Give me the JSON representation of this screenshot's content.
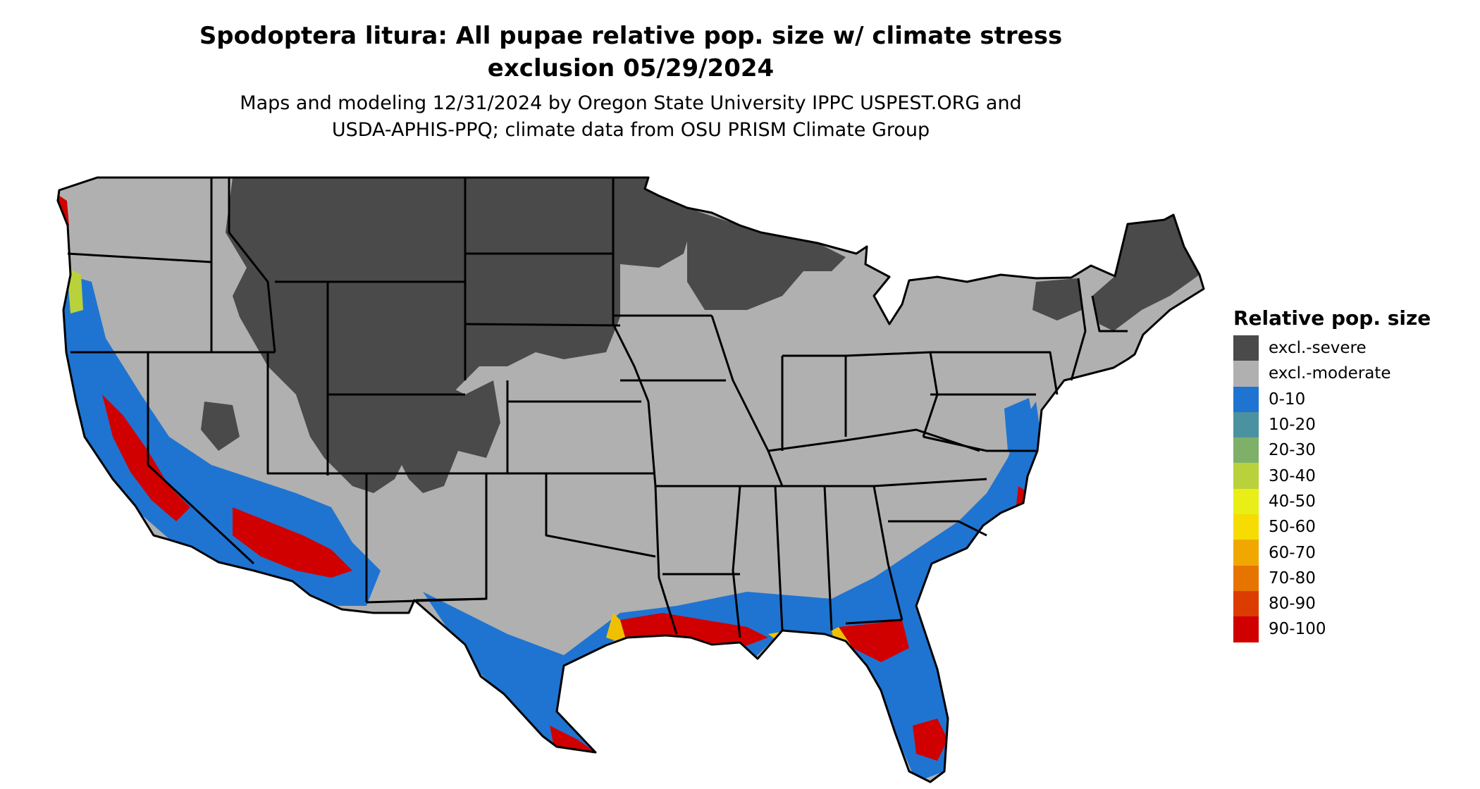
{
  "title_line1": "Spodoptera litura: All pupae relative pop. size w/ climate stress",
  "title_line2": "exclusion 05/29/2024",
  "subtitle_line1": "Maps and modeling 12/31/2024 by Oregon State University IPPC USPEST.ORG and",
  "subtitle_line2": "USDA-APHIS-PPQ; climate data from OSU PRISM Climate Group",
  "legend": {
    "title": "Relative pop. size",
    "items": [
      {
        "label": "excl.-severe",
        "color": "#4a4a4a"
      },
      {
        "label": "excl.-moderate",
        "color": "#b0b0b0"
      },
      {
        "label": "0-10",
        "color": "#1f74d1"
      },
      {
        "label": "10-20",
        "color": "#4b92a0"
      },
      {
        "label": "20-30",
        "color": "#7fb06a"
      },
      {
        "label": "30-40",
        "color": "#b9d23c"
      },
      {
        "label": "40-50",
        "color": "#e8ee16"
      },
      {
        "label": "50-60",
        "color": "#f6dc00"
      },
      {
        "label": "60-70",
        "color": "#f0a800"
      },
      {
        "label": "70-80",
        "color": "#e87400"
      },
      {
        "label": "80-90",
        "color": "#dc3c00"
      },
      {
        "label": "90-100",
        "color": "#d00000"
      }
    ]
  },
  "colors": {
    "severe": "#4a4a4a",
    "moderate": "#b0b0b0",
    "low": "#1f74d1",
    "high": "#d00000",
    "mid": "#f0c000",
    "border": "#000000"
  }
}
